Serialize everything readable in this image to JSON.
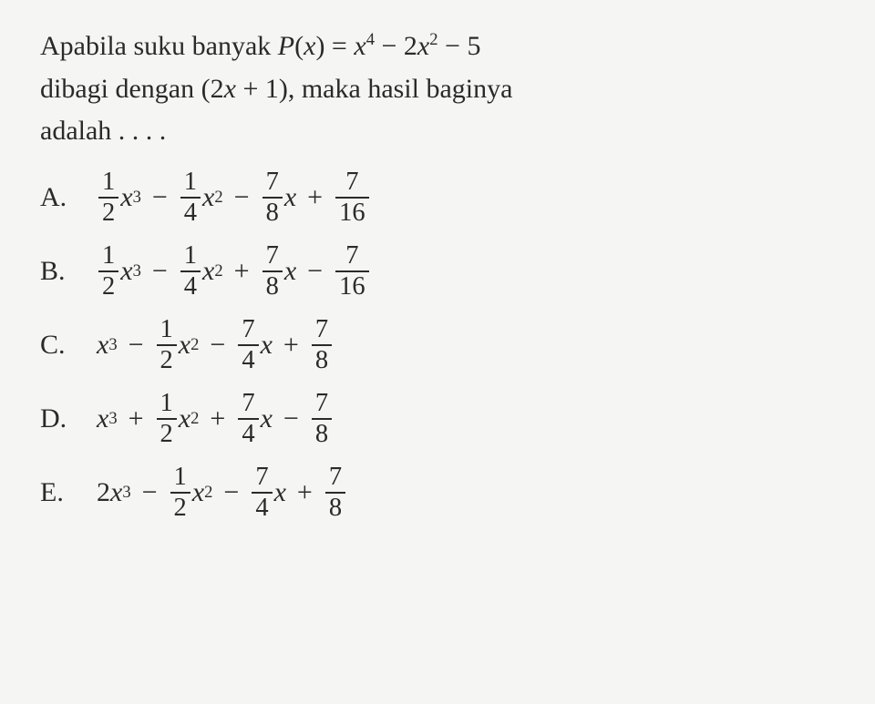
{
  "question": {
    "line1_a": "Apabila suku banyak ",
    "px": "P",
    "openParen": "(",
    "x": "x",
    "closeParen": ") = ",
    "x4": "x",
    "exp4": "4",
    "minus1": " − 2",
    "x2": "x",
    "exp2": "2",
    "minus2": " − 5",
    "line2": "dibagi dengan (2",
    "line2x": "x",
    "line2b": " + 1), maka hasil baginya",
    "line3": "adalah . . . ."
  },
  "labels": {
    "A": "A.",
    "B": "B.",
    "C": "C.",
    "D": "D.",
    "E": "E."
  },
  "fracs": {
    "half": {
      "n": "1",
      "d": "2"
    },
    "quarter": {
      "n": "1",
      "d": "4"
    },
    "seven8": {
      "n": "7",
      "d": "8"
    },
    "seven16": {
      "n": "7",
      "d": "16"
    },
    "seven4": {
      "n": "7",
      "d": "4"
    }
  },
  "sym": {
    "x": "x",
    "plus": "+",
    "minus": "−",
    "two": "2"
  },
  "exp": {
    "e3": "3",
    "e2": "2"
  }
}
